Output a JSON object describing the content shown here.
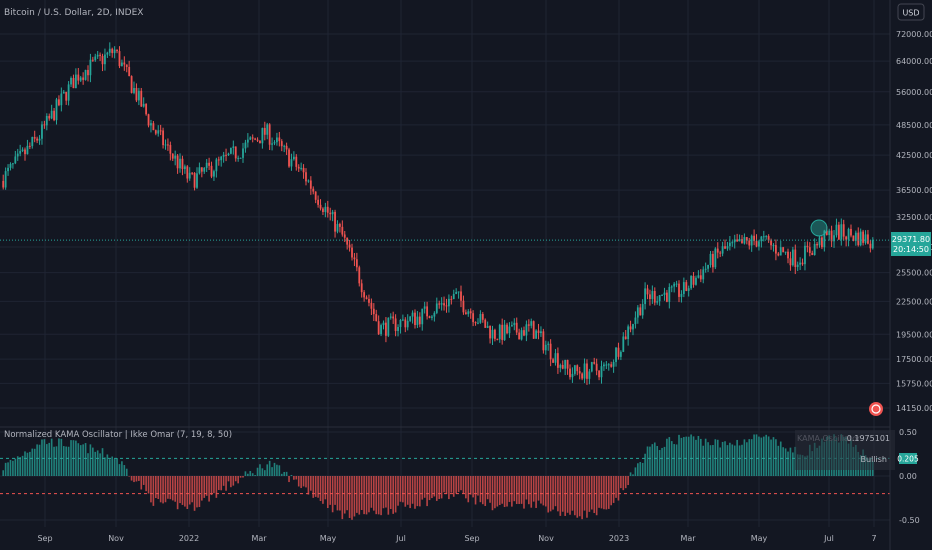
{
  "header": {
    "symbol_title": "Bitcoin / U.S. Dollar, 2D, INDEX",
    "currency_button": "USD"
  },
  "price_axis": {
    "ticks": [
      "72000.00",
      "64000.00",
      "56000.00",
      "48500.00",
      "42500.00",
      "36500.00",
      "32500.00",
      "28500.00",
      "25500.00",
      "22500.00",
      "19500.00",
      "17500.00",
      "15750.00",
      "14150.00"
    ],
    "tick_values": [
      72000,
      64000,
      56000,
      48500,
      42500,
      36500,
      32500,
      28500,
      25500,
      22500,
      19500,
      17500,
      15750,
      14150
    ],
    "last_price": "29371.80",
    "countdown": "20:14:50"
  },
  "indicator": {
    "title": "Normalized KAMA Oscillator | Ikke Omar (7, 19, 8, 50)",
    "ticks": [
      "0.50",
      "0.00",
      "-0.50"
    ],
    "tick_values": [
      0.5,
      0.0,
      -0.5
    ],
    "last_value": "0.205",
    "info_label": "KAMA Oscillator",
    "info_value": "0.1975101",
    "info_signal": "Bullish",
    "upper_line": 0.2,
    "lower_line": -0.2
  },
  "time_axis": {
    "labels": [
      "Sep",
      "Nov",
      "2022",
      "Mar",
      "May",
      "Jul",
      "Sep",
      "Nov",
      "2023",
      "Mar",
      "May",
      "Jul",
      "7"
    ]
  },
  "colors": {
    "background": "#131722",
    "up": "#26a69a",
    "down": "#ef5350",
    "grid": "#1f2433",
    "text": "#b2b5be",
    "last_price_bg": "#26a69a"
  },
  "chart_data": {
    "type": "candlestick",
    "scale": "log",
    "price_anchors": [
      {
        "label": "Aug 2021",
        "price": 38000
      },
      {
        "label": "Sep 2021",
        "price": 46000
      },
      {
        "label": "Oct 2021",
        "price": 60000
      },
      {
        "label": "Nov 2021",
        "price": 67000
      },
      {
        "label": "Dec 2021",
        "price": 48000
      },
      {
        "label": "Jan 2022",
        "price": 38000
      },
      {
        "label": "Feb 2022",
        "price": 42000
      },
      {
        "label": "Mar 2022",
        "price": 47000
      },
      {
        "label": "Apr 2022",
        "price": 39000
      },
      {
        "label": "May 2022",
        "price": 30000
      },
      {
        "label": "Jun 2022",
        "price": 20000
      },
      {
        "label": "Jul 2022",
        "price": 21000
      },
      {
        "label": "Aug 2022",
        "price": 23000
      },
      {
        "label": "Sep 2022",
        "price": 19500
      },
      {
        "label": "Oct 2022",
        "price": 20000
      },
      {
        "label": "Nov 2022",
        "price": 16500
      },
      {
        "label": "Dec 2022",
        "price": 16800
      },
      {
        "label": "Jan 2023",
        "price": 23000
      },
      {
        "label": "Feb 2023",
        "price": 23500
      },
      {
        "label": "Mar 2023",
        "price": 28000
      },
      {
        "label": "Apr 2023",
        "price": 29500
      },
      {
        "label": "May 2023",
        "price": 27000
      },
      {
        "label": "Jun 2023",
        "price": 30500
      },
      {
        "label": "Jul 2023",
        "price": 29371.8
      }
    ],
    "oscillator_anchors": [
      0.1,
      0.4,
      0.35,
      0.2,
      -0.3,
      -0.35,
      -0.1,
      0.15,
      -0.15,
      -0.45,
      -0.4,
      -0.3,
      -0.2,
      -0.35,
      -0.3,
      -0.45,
      -0.4,
      0.3,
      0.45,
      0.35,
      0.45,
      0.25,
      0.45,
      0.2
    ],
    "last_value": 29371.8
  }
}
